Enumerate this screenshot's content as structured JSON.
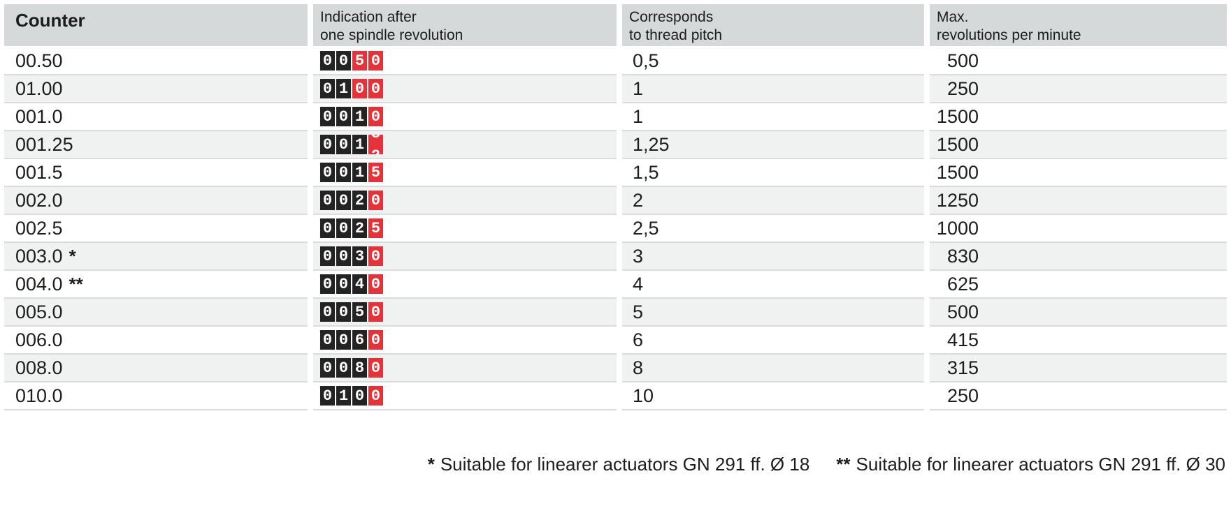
{
  "header": {
    "counter": "Counter",
    "indication_line1": "Indication after",
    "indication_line2": "one spindle revolution",
    "pitch_line1": "Corresponds",
    "pitch_line2": "to thread pitch",
    "rpm_line1": "Max.",
    "rpm_line2": "revolutions per minute"
  },
  "colors": {
    "header_bg": "#d6d9da",
    "row_alt_bg": "#f0f2f1",
    "separator": "#d8dcdb",
    "digit_black": "#232323",
    "digit_red": "#e6333a",
    "text": "#1d1d1b"
  },
  "rows": [
    {
      "counter": "00.50",
      "note": "",
      "digits": [
        {
          "v": "0",
          "c": "b"
        },
        {
          "v": "0",
          "c": "b"
        },
        {
          "v": "5",
          "c": "r"
        },
        {
          "v": "0",
          "c": "r"
        }
      ],
      "pitch": "0,5",
      "rpm": "500"
    },
    {
      "counter": "01.00",
      "note": "",
      "digits": [
        {
          "v": "0",
          "c": "b"
        },
        {
          "v": "1",
          "c": "b"
        },
        {
          "v": "0",
          "c": "r"
        },
        {
          "v": "0",
          "c": "r"
        }
      ],
      "pitch": "1",
      "rpm": "250"
    },
    {
      "counter": "001.0",
      "note": "",
      "digits": [
        {
          "v": "0",
          "c": "b"
        },
        {
          "v": "0",
          "c": "b"
        },
        {
          "v": "1",
          "c": "b"
        },
        {
          "v": "0",
          "c": "r"
        }
      ],
      "pitch": "1",
      "rpm": "1500"
    },
    {
      "counter": "001.25",
      "note": "",
      "digits": [
        {
          "v": "0",
          "c": "b"
        },
        {
          "v": "0",
          "c": "b"
        },
        {
          "v": "1",
          "c": "b"
        },
        {
          "split": true,
          "top": "3",
          "bottom": "2",
          "c": "r"
        }
      ],
      "pitch": "1,25",
      "rpm": "1500"
    },
    {
      "counter": "001.5",
      "note": "",
      "digits": [
        {
          "v": "0",
          "c": "b"
        },
        {
          "v": "0",
          "c": "b"
        },
        {
          "v": "1",
          "c": "b"
        },
        {
          "v": "5",
          "c": "r"
        }
      ],
      "pitch": "1,5",
      "rpm": "1500"
    },
    {
      "counter": "002.0",
      "note": "",
      "digits": [
        {
          "v": "0",
          "c": "b"
        },
        {
          "v": "0",
          "c": "b"
        },
        {
          "v": "2",
          "c": "b"
        },
        {
          "v": "0",
          "c": "r"
        }
      ],
      "pitch": "2",
      "rpm": "1250"
    },
    {
      "counter": "002.5",
      "note": "",
      "digits": [
        {
          "v": "0",
          "c": "b"
        },
        {
          "v": "0",
          "c": "b"
        },
        {
          "v": "2",
          "c": "b"
        },
        {
          "v": "5",
          "c": "r"
        }
      ],
      "pitch": "2,5",
      "rpm": "1000"
    },
    {
      "counter": "003.0",
      "note": "*",
      "digits": [
        {
          "v": "0",
          "c": "b"
        },
        {
          "v": "0",
          "c": "b"
        },
        {
          "v": "3",
          "c": "b"
        },
        {
          "v": "0",
          "c": "r"
        }
      ],
      "pitch": "3",
      "rpm": "830"
    },
    {
      "counter": "004.0",
      "note": "**",
      "digits": [
        {
          "v": "0",
          "c": "b"
        },
        {
          "v": "0",
          "c": "b"
        },
        {
          "v": "4",
          "c": "b"
        },
        {
          "v": "0",
          "c": "r"
        }
      ],
      "pitch": "4",
      "rpm": "625"
    },
    {
      "counter": "005.0",
      "note": "",
      "digits": [
        {
          "v": "0",
          "c": "b"
        },
        {
          "v": "0",
          "c": "b"
        },
        {
          "v": "5",
          "c": "b"
        },
        {
          "v": "0",
          "c": "r"
        }
      ],
      "pitch": "5",
      "rpm": "500"
    },
    {
      "counter": "006.0",
      "note": "",
      "digits": [
        {
          "v": "0",
          "c": "b"
        },
        {
          "v": "0",
          "c": "b"
        },
        {
          "v": "6",
          "c": "b"
        },
        {
          "v": "0",
          "c": "r"
        }
      ],
      "pitch": "6",
      "rpm": "415"
    },
    {
      "counter": "008.0",
      "note": "",
      "digits": [
        {
          "v": "0",
          "c": "b"
        },
        {
          "v": "0",
          "c": "b"
        },
        {
          "v": "8",
          "c": "b"
        },
        {
          "v": "0",
          "c": "r"
        }
      ],
      "pitch": "8",
      "rpm": "315"
    },
    {
      "counter": "010.0",
      "note": "",
      "digits": [
        {
          "v": "0",
          "c": "b"
        },
        {
          "v": "1",
          "c": "b"
        },
        {
          "v": "0",
          "c": "b"
        },
        {
          "v": "0",
          "c": "r"
        }
      ],
      "pitch": "10",
      "rpm": "250"
    }
  ],
  "footnotes": [
    {
      "marker": "*",
      "text": "Suitable for linearer actuators GN 291 ff. Ø 18"
    },
    {
      "marker": "**",
      "text": "Suitable for linearer actuators GN 291 ff. Ø 30"
    }
  ]
}
